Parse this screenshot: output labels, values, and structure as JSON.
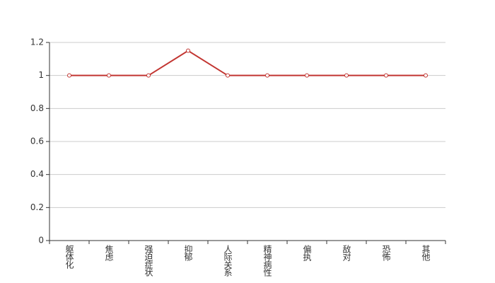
{
  "chart_data": {
    "type": "line",
    "categories": [
      "躯体化",
      "焦虑",
      "强迫症状",
      "抑郁",
      "人际关系",
      "精神病性",
      "偏执",
      "敌对",
      "恐怖",
      "其他"
    ],
    "series": [
      {
        "color": "#c23531",
        "values": [
          1,
          1,
          1,
          1.15,
          1,
          1,
          1,
          1,
          1,
          1
        ]
      }
    ],
    "ylim": [
      0,
      1.2
    ],
    "yticks": [
      0,
      0.2,
      0.4,
      0.6,
      0.8,
      1,
      1.2
    ],
    "grid": true
  }
}
